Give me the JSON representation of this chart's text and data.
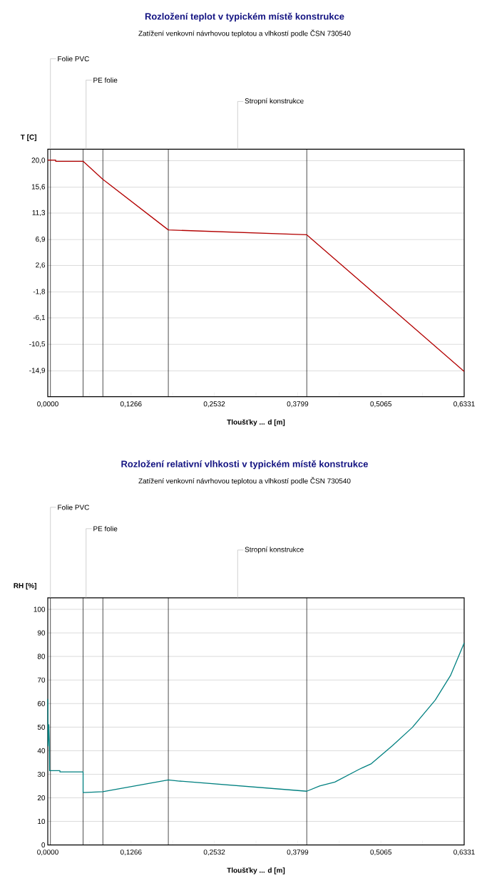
{
  "chart_data": [
    {
      "type": "line",
      "title": "Rozložení teplot v typickém místě konstrukce",
      "subtitle": "Zatížení venkovní návrhovou teplotou a vlhkostí podle ČSN 730540",
      "xlabel": "Tloušťky ... d [m]",
      "ylabel": "T [C]",
      "x": [
        0,
        0.012,
        0.012,
        0.0537,
        0.0838,
        0.1833,
        0.3938,
        0.6331
      ],
      "series": [
        {
          "color": "#b30000",
          "values": [
            20.1,
            20.1,
            19.9,
            19.9,
            16.9,
            8.5,
            7.7,
            -15.0
          ]
        }
      ],
      "xlim": [
        0,
        0.6331
      ],
      "xticks": [
        {
          "value": 0,
          "label": "0,0000"
        },
        {
          "value": 0.0633,
          "label": null
        },
        {
          "value": 0.1266,
          "label": "0,1266"
        },
        {
          "value": 0.1899,
          "label": null
        },
        {
          "value": 0.2532,
          "label": "0,2532"
        },
        {
          "value": 0.3166,
          "label": null
        },
        {
          "value": 0.3799,
          "label": "0,3799"
        },
        {
          "value": 0.4432,
          "label": null
        },
        {
          "value": 0.5065,
          "label": "0,5065"
        },
        {
          "value": 0.5698,
          "label": null
        },
        {
          "value": 0.6331,
          "label": "0,6331"
        }
      ],
      "ylim": [
        -19.2,
        21.9
      ],
      "yticks": [
        {
          "value": 20.0,
          "label": "20,0"
        },
        {
          "value": 15.6,
          "label": "15,6"
        },
        {
          "value": 11.3,
          "label": "11,3"
        },
        {
          "value": 6.9,
          "label": "6,9"
        },
        {
          "value": 2.6,
          "label": "2,6"
        },
        {
          "value": -1.8,
          "label": "-1,8"
        },
        {
          "value": -6.1,
          "label": "-6,1"
        },
        {
          "value": -10.5,
          "label": "-10,5"
        },
        {
          "value": -14.9,
          "label": "-14,9"
        }
      ],
      "grid": "y",
      "marker": "none",
      "ref_lines": [
        {
          "axis": "x",
          "value": 0.004,
          "color": "#000000"
        },
        {
          "axis": "x",
          "value": 0.0537,
          "color": "#000000"
        },
        {
          "axis": "x",
          "value": 0.0838,
          "color": "#000000"
        },
        {
          "axis": "x",
          "value": 0.1833,
          "color": "#000000"
        },
        {
          "axis": "x",
          "value": 0.3938,
          "color": "#000000"
        }
      ],
      "annotations": [
        {
          "text": "Folie PVC",
          "x": 0.004,
          "y": 21.9
        },
        "PE folie",
        "Stropní konstrukce"
      ]
    },
    {
      "type": "line",
      "title": "Rozložení relativní vlhkosti v typickém místě konstrukce",
      "subtitle": "Zatížení venkovní návrhovou teplotou a vlhkostí podle ČSN 730540",
      "xlabel": "Tloušťky ... d [m]",
      "ylabel": "RH [%]",
      "x": [
        0,
        0.0005,
        0.0015,
        0.0025,
        0.0028,
        0.0185,
        0.0185,
        0.0537,
        0.0537,
        0.0662,
        0.0838,
        0.1833,
        0.2004,
        0.3938,
        0.4133,
        0.4365,
        0.4734,
        0.492,
        0.5244,
        0.5544,
        0.5891,
        0.6123,
        0.6331
      ],
      "series": [
        {
          "color": "#008080",
          "values": [
            62,
            42,
            51,
            42,
            31.5,
            31.5,
            31.0,
            31.0,
            22.2,
            22.4,
            22.6,
            27.6,
            27.1,
            22.8,
            25.0,
            26.7,
            32.1,
            34.5,
            42.2,
            49.9,
            61.5,
            71.9,
            85.7
          ]
        }
      ],
      "xlim": [
        0,
        0.6331
      ],
      "xticks": [
        {
          "value": 0,
          "label": "0,0000"
        },
        {
          "value": 0.0633,
          "label": null
        },
        {
          "value": 0.1266,
          "label": "0,1266"
        },
        {
          "value": 0.1899,
          "label": null
        },
        {
          "value": 0.2532,
          "label": "0,2532"
        },
        {
          "value": 0.3166,
          "label": null
        },
        {
          "value": 0.3799,
          "label": "0,3799"
        },
        {
          "value": 0.4432,
          "label": null
        },
        {
          "value": 0.5065,
          "label": "0,5065"
        },
        {
          "value": 0.5698,
          "label": null
        },
        {
          "value": 0.6331,
          "label": "0,6331"
        }
      ],
      "ylim": [
        0,
        104.9
      ],
      "yticks": [
        0,
        10,
        20,
        30,
        40,
        50,
        60,
        70,
        80,
        90,
        100
      ],
      "grid": "y",
      "marker": "none",
      "ref_lines": [
        {
          "axis": "x",
          "value": 0.004,
          "color": "#000000"
        },
        {
          "axis": "x",
          "value": 0.0537,
          "color": "#000000"
        },
        {
          "axis": "x",
          "value": 0.0838,
          "color": "#000000"
        },
        {
          "axis": "x",
          "value": 0.1833,
          "color": "#000000"
        },
        {
          "axis": "x",
          "value": 0.3938,
          "color": "#000000"
        }
      ],
      "annotations": [
        {
          "text": "Folie PVC",
          "x": 0.004,
          "y": 104.9
        },
        "PE folie",
        "Stropní konstrukce"
      ]
    }
  ]
}
